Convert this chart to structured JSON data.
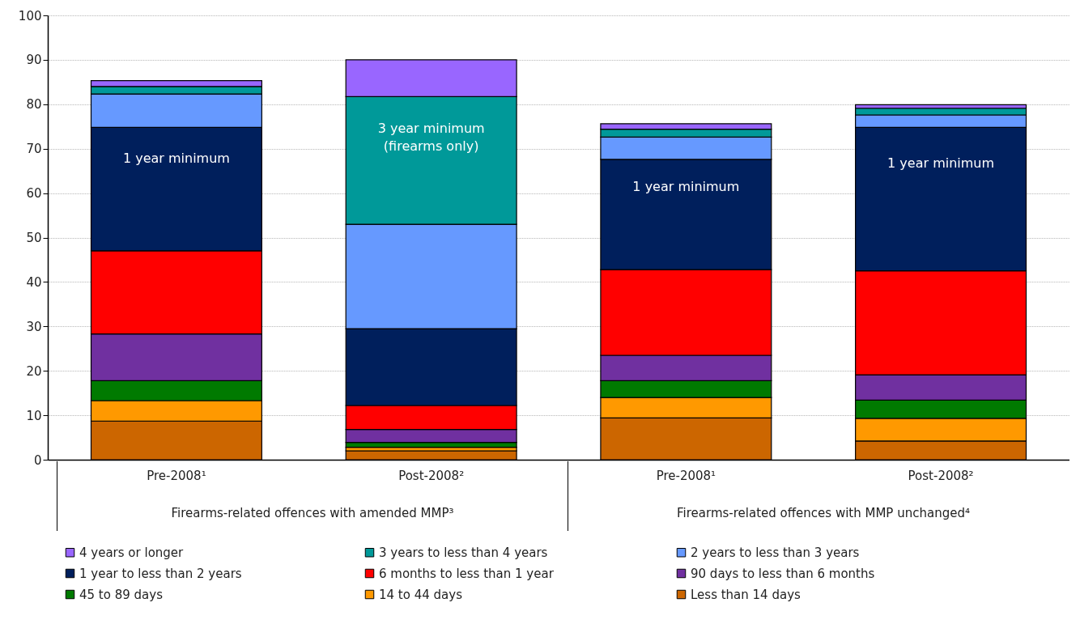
{
  "chart_data": {
    "type": "bar",
    "stacked": true,
    "categories": [
      "Pre-2008¹",
      "Post-2008²",
      "Pre-2008¹",
      "Post-2008²"
    ],
    "ylim": [
      0,
      100
    ],
    "yticks": [
      0,
      10,
      20,
      30,
      40,
      50,
      60,
      70,
      80,
      90,
      100
    ],
    "grid": "y",
    "legend": "bottom",
    "series": [
      {
        "name": "Less than 14 days",
        "color": "#cc6600",
        "values": [
          8.7,
          2.0,
          9.4,
          4.2
        ]
      },
      {
        "name": "14 to 44 days",
        "color": "#ff9900",
        "values": [
          4.6,
          0.8,
          4.6,
          5.1
        ]
      },
      {
        "name": "45 to 89 days",
        "color": "#007a00",
        "values": [
          4.5,
          1.1,
          3.8,
          4.1
        ]
      },
      {
        "name": "90 days to less than 6 months",
        "color": "#7030a0",
        "values": [
          10.5,
          2.9,
          5.7,
          5.7
        ]
      },
      {
        "name": "6 months to less than 1 year",
        "color": "#ff0000",
        "values": [
          18.7,
          5.4,
          19.3,
          23.4
        ]
      },
      {
        "name": "1 year to less than 2 years",
        "color": "#001f5c",
        "values": [
          27.8,
          17.3,
          24.8,
          32.3
        ]
      },
      {
        "name": "2 years to less than 3 years",
        "color": "#6699ff",
        "values": [
          7.5,
          23.5,
          5.0,
          2.8
        ]
      },
      {
        "name": "3 years to less than 4 years",
        "color": "#009999",
        "values": [
          1.7,
          28.7,
          1.8,
          1.5
        ]
      },
      {
        "name": "4 years or longer",
        "color": "#9966ff",
        "values": [
          1.3,
          8.3,
          1.2,
          0.8
        ]
      }
    ],
    "annotations": [
      "1 year minimum",
      "3 year minimum (firearms only)",
      "1 year minimum",
      "1 year minimum",
      "Firearms-related offences with amended MMP³",
      "Firearms-related offences with MMP unchanged⁴"
    ]
  }
}
